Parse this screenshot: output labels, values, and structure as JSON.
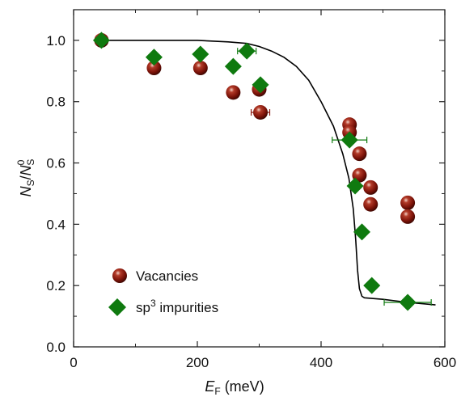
{
  "chart_data": {
    "type": "scatter",
    "xlabel": {
      "main": "E",
      "sub": "F",
      "unit": "(meV)"
    },
    "ylabel": {
      "n1": "N",
      "s1": "S",
      "slash": "/",
      "n2": "N",
      "s2": "S",
      "sup": "0"
    },
    "xlim": [
      0,
      600
    ],
    "ylim": [
      0.0,
      1.1
    ],
    "x_ticks": [
      0,
      200,
      400,
      600
    ],
    "y_ticks": [
      0.0,
      0.2,
      0.4,
      0.6,
      0.8,
      1.0
    ],
    "x_tick_labels": [
      "0",
      "200",
      "400",
      "600"
    ],
    "y_tick_labels": [
      "0.0",
      "0.2",
      "0.4",
      "0.6",
      "0.8",
      "1.0"
    ],
    "grid": false,
    "legend_position": "bottom-left",
    "series": [
      {
        "name": "Vacancies",
        "marker": "sphere",
        "color": "#8b1a10",
        "points": [
          {
            "x": 45,
            "y": 1.0
          },
          {
            "x": 130,
            "y": 0.91
          },
          {
            "x": 205,
            "y": 0.91
          },
          {
            "x": 258,
            "y": 0.83
          },
          {
            "x": 300,
            "y": 0.84
          },
          {
            "x": 302,
            "y": 0.765,
            "xerr": 15
          },
          {
            "x": 446,
            "y": 0.725
          },
          {
            "x": 446,
            "y": 0.7
          },
          {
            "x": 462,
            "y": 0.63
          },
          {
            "x": 462,
            "y": 0.56
          },
          {
            "x": 480,
            "y": 0.52
          },
          {
            "x": 480,
            "y": 0.465
          },
          {
            "x": 540,
            "y": 0.47
          },
          {
            "x": 540,
            "y": 0.425
          }
        ]
      },
      {
        "name": "sp³ impurities",
        "legend_label": {
          "base": "sp",
          "sup": "3",
          "rest": " impurities"
        },
        "marker": "diamond",
        "color": "#0f7a0f",
        "points": [
          {
            "x": 45,
            "y": 1.0
          },
          {
            "x": 130,
            "y": 0.945
          },
          {
            "x": 205,
            "y": 0.955
          },
          {
            "x": 258,
            "y": 0.915
          },
          {
            "x": 280,
            "y": 0.965,
            "xerr": 15
          },
          {
            "x": 302,
            "y": 0.855
          },
          {
            "x": 446,
            "y": 0.675,
            "xerr": 28
          },
          {
            "x": 455,
            "y": 0.525
          },
          {
            "x": 466,
            "y": 0.375
          },
          {
            "x": 482,
            "y": 0.2
          },
          {
            "x": 540,
            "y": 0.145,
            "xerr": 38
          }
        ]
      }
    ],
    "curve": {
      "color": "#000000",
      "points": [
        [
          40,
          1.0
        ],
        [
          100,
          1.0
        ],
        [
          150,
          1.0
        ],
        [
          200,
          1.0
        ],
        [
          250,
          0.995
        ],
        [
          280,
          0.99
        ],
        [
          300,
          0.98
        ],
        [
          320,
          0.965
        ],
        [
          340,
          0.945
        ],
        [
          360,
          0.915
        ],
        [
          380,
          0.87
        ],
        [
          400,
          0.8
        ],
        [
          420,
          0.72
        ],
        [
          435,
          0.63
        ],
        [
          445,
          0.55
        ],
        [
          452,
          0.45
        ],
        [
          456,
          0.35
        ],
        [
          459,
          0.25
        ],
        [
          462,
          0.19
        ],
        [
          466,
          0.165
        ],
        [
          470,
          0.16
        ],
        [
          500,
          0.155
        ],
        [
          540,
          0.145
        ],
        [
          585,
          0.137
        ]
      ]
    }
  }
}
